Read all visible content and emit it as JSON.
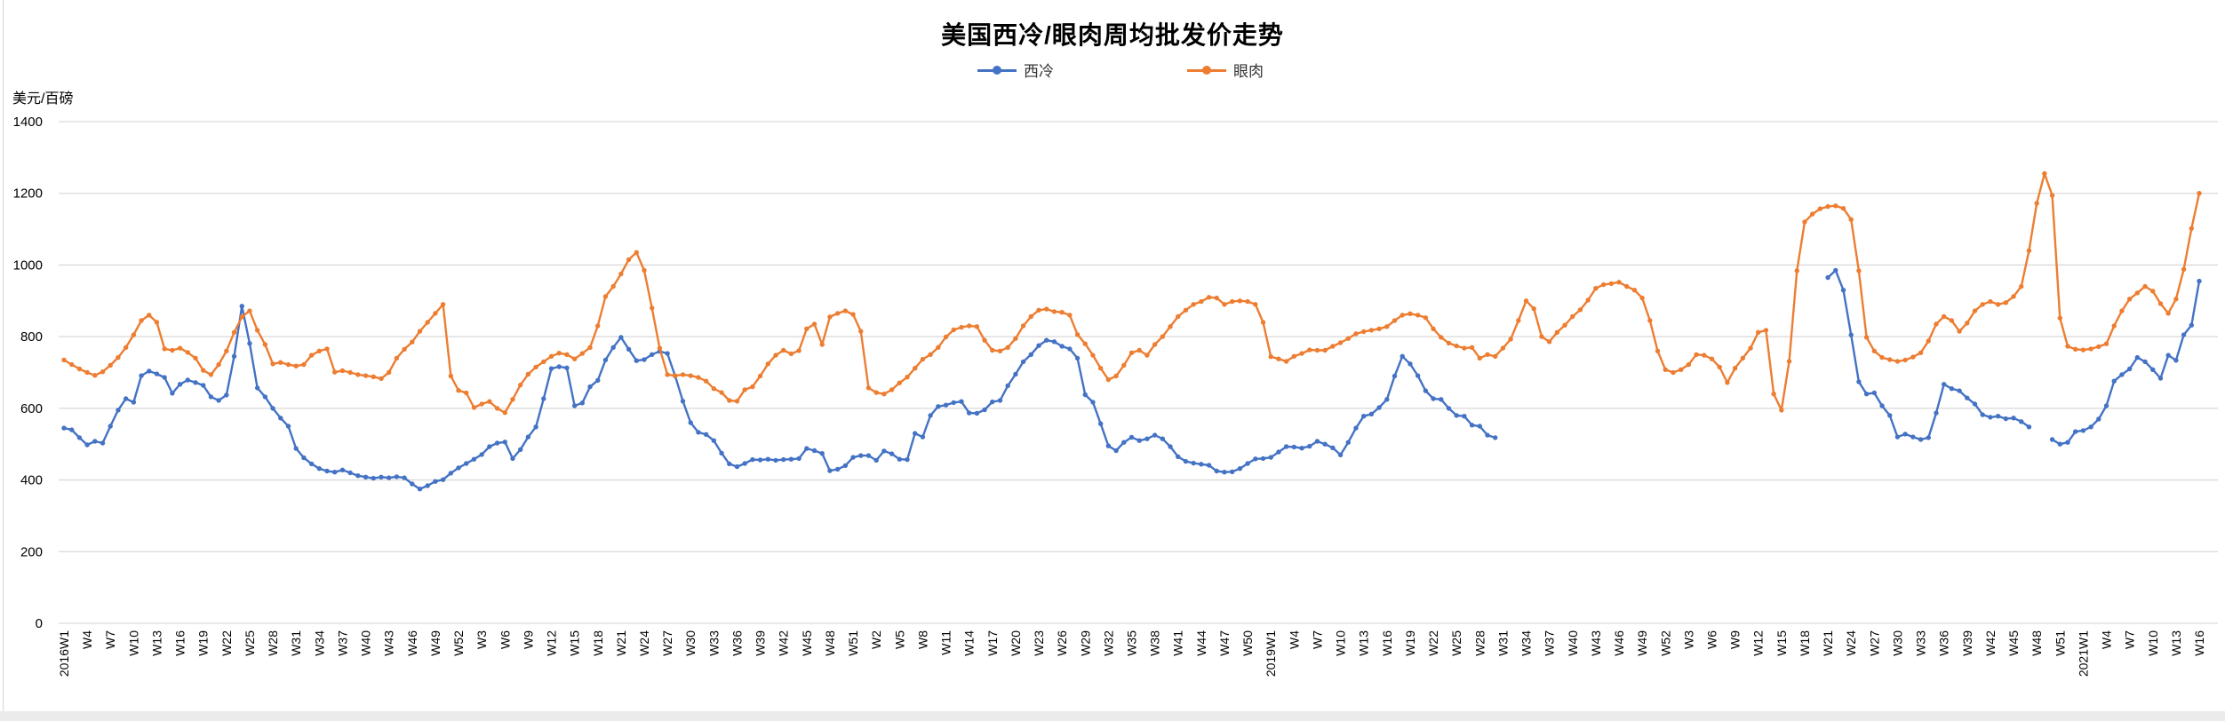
{
  "title": "美国西冷/眼肉周均批发价走势",
  "y_axis_unit": "美元/百磅",
  "legend": [
    {
      "name": "西冷",
      "color": "#4472C4"
    },
    {
      "name": "眼肉",
      "color": "#ED7D31"
    }
  ],
  "chart_data": {
    "type": "line",
    "title": "美国西冷/眼肉周均批发价走势",
    "xlabel": "",
    "ylabel": "美元/百磅",
    "ylim": [
      0,
      1400
    ],
    "y_ticks": [
      1400,
      1200,
      1000,
      800,
      600,
      400,
      200,
      0
    ],
    "grid": "horizontal",
    "legend_position": "top",
    "marker_style": "circle",
    "x_tick_every_weeks": 3,
    "x_tick_labels": [
      "2016W1",
      "W4",
      "W7",
      "W10",
      "W13",
      "W16",
      "W19",
      "W22",
      "W25",
      "W28",
      "W31",
      "W34",
      "W37",
      "W40",
      "W43",
      "W46",
      "W49",
      "W52",
      "W3",
      "W6",
      "W9",
      "W12",
      "W15",
      "W18",
      "W21",
      "W24",
      "W27",
      "W30",
      "W33",
      "W36",
      "W39",
      "W42",
      "W45",
      "W48",
      "W51",
      "W2",
      "W5",
      "W8",
      "W11",
      "W14",
      "W17",
      "W20",
      "W23",
      "W26",
      "W29",
      "W32",
      "W35",
      "W38",
      "W41",
      "W44",
      "W47",
      "W50",
      "2019W1",
      "W4",
      "W7",
      "W10",
      "W13",
      "W16",
      "W19",
      "W22",
      "W25",
      "W28",
      "W31",
      "W34",
      "W37",
      "W40",
      "W43",
      "W46",
      "W49",
      "W52",
      "W3",
      "W6",
      "W9",
      "W12",
      "W15",
      "W18",
      "W21",
      "W24",
      "W27",
      "W30",
      "W33",
      "W36",
      "W39",
      "W42",
      "W45",
      "W48",
      "W51",
      "2021W1",
      "W4",
      "W7",
      "W10",
      "W13",
      "W16"
    ],
    "series": [
      {
        "name": "西冷",
        "color": "#4472C4",
        "values": [
          545,
          540,
          518,
          498,
          508,
          503,
          550,
          595,
          627,
          617,
          691,
          704,
          696,
          686,
          642,
          667,
          679,
          672,
          664,
          632,
          622,
          637,
          745,
          885,
          781,
          657,
          632,
          600,
          573,
          550,
          488,
          462,
          445,
          432,
          425,
          422,
          428,
          420,
          412,
          408,
          405,
          408,
          406,
          409,
          406,
          389,
          375,
          384,
          396,
          401,
          419,
          434,
          446,
          458,
          471,
          493,
          503,
          506,
          460,
          485,
          520,
          548,
          627,
          711,
          716,
          713,
          607,
          615,
          660,
          678,
          735,
          770,
          798,
          765,
          733,
          736,
          750,
          759,
          753,
          690,
          620,
          560,
          533,
          527,
          510,
          475,
          445,
          437,
          446,
          457,
          456,
          458,
          455,
          457,
          458,
          460,
          488,
          482,
          474,
          426,
          430,
          440,
          463,
          468,
          468,
          455,
          481,
          473,
          458,
          457,
          530,
          520,
          580,
          605,
          609,
          616,
          619,
          587,
          586,
          596,
          618,
          622,
          663,
          695,
          730,
          750,
          775,
          790,
          786,
          773,
          766,
          740,
          638,
          617,
          557,
          495,
          482,
          505,
          519,
          510,
          515,
          525,
          515,
          493,
          465,
          452,
          447,
          444,
          441,
          425,
          422,
          423,
          432,
          446,
          459,
          460,
          463,
          478,
          493,
          492,
          489,
          494,
          508,
          500,
          490,
          470,
          505,
          545,
          578,
          584,
          602,
          625,
          690,
          745,
          724,
          691,
          649,
          627,
          625,
          600,
          580,
          578,
          553,
          550,
          525,
          518,
          null,
          null,
          null,
          null,
          null,
          null,
          null,
          null,
          null,
          null,
          null,
          null,
          null,
          null,
          null,
          null,
          null,
          null,
          null,
          null,
          null,
          null,
          null,
          null,
          null,
          null,
          null,
          null,
          null,
          null,
          null,
          null,
          null,
          null,
          null,
          null,
          null,
          null,
          null,
          null,
          null,
          null,
          965,
          985,
          930,
          805,
          674,
          640,
          643,
          607,
          580,
          520,
          528,
          520,
          513,
          518,
          587,
          667,
          655,
          649,
          629,
          612,
          582,
          575,
          578,
          571,
          573,
          563,
          548,
          null,
          null,
          513,
          500,
          505,
          535,
          538,
          548,
          570,
          607,
          676,
          694,
          710,
          742,
          730,
          708,
          684,
          748,
          734,
          805,
          832,
          955
        ]
      },
      {
        "name": "眼肉",
        "color": "#ED7D31",
        "values": [
          735,
          722,
          710,
          700,
          692,
          702,
          720,
          742,
          770,
          805,
          845,
          860,
          840,
          766,
          762,
          768,
          756,
          740,
          706,
          694,
          722,
          760,
          812,
          855,
          872,
          818,
          778,
          724,
          728,
          722,
          718,
          722,
          748,
          760,
          766,
          701,
          705,
          700,
          694,
          691,
          688,
          683,
          700,
          740,
          765,
          785,
          815,
          840,
          865,
          890,
          690,
          650,
          643,
          602,
          612,
          619,
          600,
          588,
          625,
          665,
          695,
          715,
          730,
          745,
          754,
          750,
          738,
          753,
          770,
          830,
          912,
          940,
          975,
          1015,
          1035,
          985,
          880,
          768,
          694,
          691,
          694,
          691,
          686,
          676,
          655,
          644,
          622,
          620,
          652,
          660,
          690,
          724,
          748,
          762,
          752,
          761,
          822,
          835,
          778,
          855,
          865,
          872,
          862,
          815,
          657,
          644,
          640,
          652,
          671,
          687,
          712,
          737,
          750,
          770,
          799,
          819,
          826,
          830,
          828,
          790,
          762,
          760,
          770,
          795,
          830,
          856,
          874,
          877,
          870,
          868,
          860,
          806,
          780,
          748,
          712,
          680,
          690,
          720,
          755,
          762,
          748,
          778,
          800,
          828,
          856,
          874,
          890,
          898,
          910,
          908,
          890,
          898,
          900,
          898,
          890,
          840,
          744,
          738,
          731,
          745,
          753,
          763,
          762,
          762,
          773,
          783,
          795,
          808,
          814,
          818,
          822,
          828,
          845,
          860,
          864,
          860,
          853,
          822,
          798,
          782,
          774,
          768,
          770,
          740,
          750,
          745,
          768,
          793,
          845,
          900,
          878,
          800,
          786,
          812,
          832,
          856,
          875,
          902,
          935,
          945,
          948,
          952,
          940,
          930,
          908,
          845,
          760,
          708,
          700,
          708,
          722,
          750,
          748,
          738,
          715,
          672,
          712,
          740,
          768,
          812,
          818,
          640,
          595,
          731,
          984,
          1120,
          1142,
          1157,
          1163,
          1165,
          1158,
          1127,
          984,
          798,
          760,
          742,
          736,
          731,
          735,
          743,
          755,
          788,
          835,
          856,
          845,
          815,
          838,
          872,
          890,
          898,
          890,
          895,
          912,
          940,
          1040,
          1172,
          1255,
          1194,
          852,
          773,
          765,
          763,
          766,
          772,
          780,
          830,
          872,
          905,
          922,
          940,
          927,
          892,
          865,
          905,
          988,
          1102,
          1200
        ]
      }
    ]
  }
}
